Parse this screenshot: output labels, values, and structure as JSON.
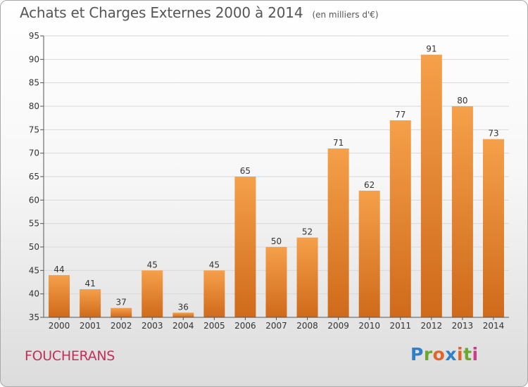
{
  "header": {
    "title": "Achats et Charges Externes 2000 à 2014",
    "subtitle": "(en milliers d'€)"
  },
  "footer": {
    "commune": "FOUCHERANS",
    "logo": "Proxiti",
    "logo_colors": [
      "#2f80c8",
      "#6aa832",
      "#e0652a",
      "#2f80c8",
      "#e0652a",
      "#6aa832",
      "#d03a8a"
    ]
  },
  "chart_data": {
    "type": "bar",
    "title": "Achats et Charges Externes 2000 à 2014",
    "subtitle": "(en milliers d'€)",
    "categories": [
      "2000",
      "2001",
      "2002",
      "2003",
      "2004",
      "2005",
      "2006",
      "2007",
      "2008",
      "2009",
      "2010",
      "2011",
      "2012",
      "2013",
      "2014"
    ],
    "values": [
      44,
      41,
      37,
      45,
      36,
      45,
      65,
      50,
      52,
      71,
      62,
      77,
      91,
      80,
      73
    ],
    "ylim": [
      35,
      95
    ],
    "yticks": [
      35,
      40,
      45,
      50,
      55,
      60,
      65,
      70,
      75,
      80,
      85,
      90,
      95
    ],
    "grid": true,
    "bar_color_top": "#f5a04a",
    "bar_color_bottom": "#cf6a1b"
  }
}
